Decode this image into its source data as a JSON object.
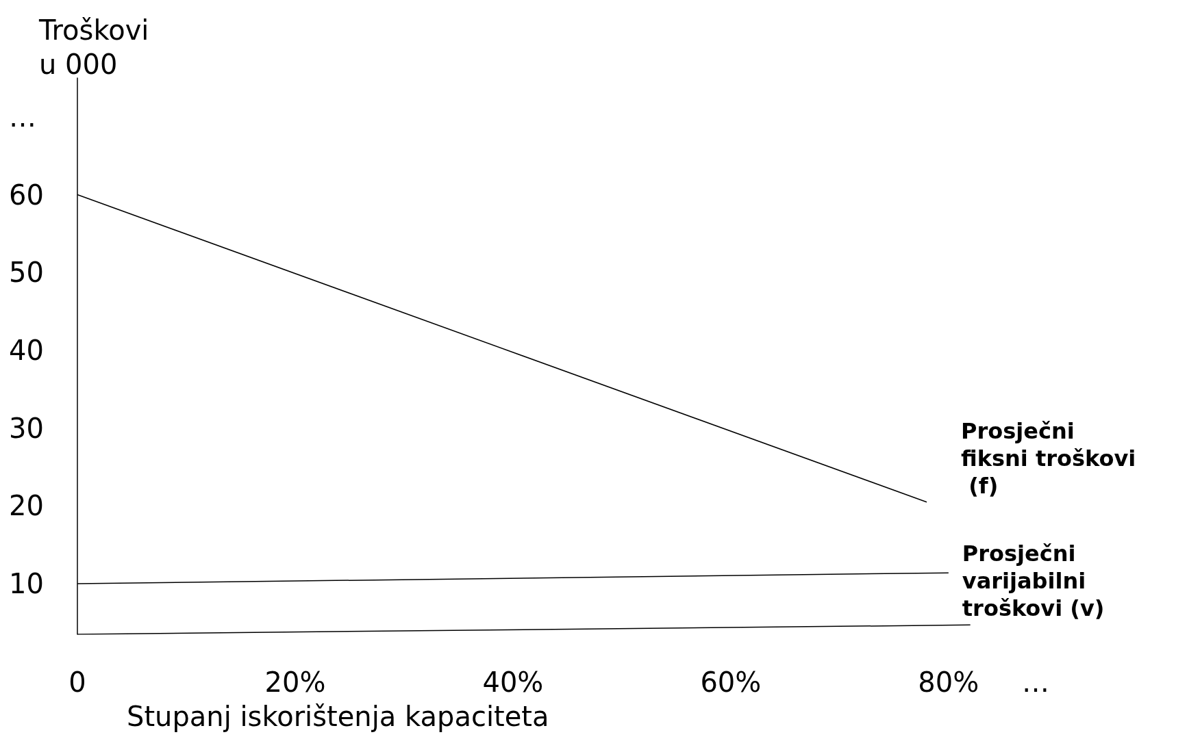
{
  "chart_data": {
    "type": "line",
    "xlabel": "Stupanj iskorištenja kapaciteta",
    "ylabel": "Troškovi u 000",
    "series": [
      {
        "name": "Prosječni fiksni troškovi (f)",
        "color": "#000000",
        "x": [
          0,
          78
        ],
        "values": [
          60,
          20.5
        ]
      },
      {
        "name": "Prosječni varijabilni troškovi (v)",
        "color": "#000000",
        "x": [
          0,
          80
        ],
        "values": [
          10,
          11.4
        ]
      },
      {
        "color": "#000000",
        "x": [
          0,
          82
        ],
        "values": [
          3.5,
          4.7
        ]
      }
    ],
    "xlim": [
      0,
      88
    ],
    "xticks": [
      0,
      {
        "value": 20,
        "label": "20%"
      },
      {
        "value": 40,
        "label": "40%"
      },
      {
        "value": 60,
        "label": "60%"
      },
      {
        "value": 80,
        "label": "80%"
      },
      {
        "value": 88,
        "label": "…"
      }
    ],
    "ylim": [
      3.5,
      75
    ],
    "yticks": [
      10,
      20,
      30,
      40,
      50,
      60,
      {
        "value": 70,
        "label": "…"
      }
    ],
    "grid": false,
    "legend": false,
    "marker": "none",
    "line_style": "solid"
  }
}
